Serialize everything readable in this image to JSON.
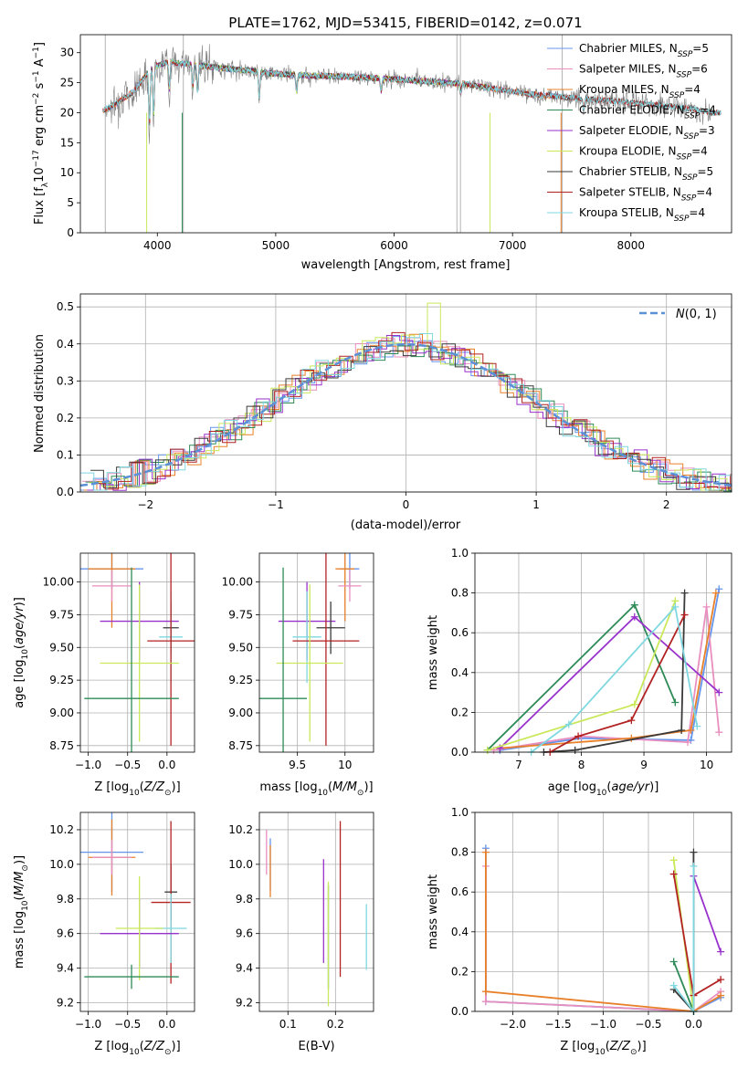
{
  "title": "PLATE=1762, MJD=53415, FIBERID=0142, z=0.071",
  "series_colors": {
    "Chabrier MILES": "#6495ed",
    "Salpeter MILES": "#e88fbf",
    "Kroupa MILES": "#e8802a",
    "Chabrier ELODIE": "#2e8b57",
    "Salpeter ELODIE": "#9932cc",
    "Kroupa ELODIE": "#c9e85a",
    "Chabrier STELIB": "#3a3a3a",
    "Salpeter STELIB": "#b22222",
    "Kroupa STELIB": "#7fd8e0"
  },
  "chart_data": [
    {
      "id": "spectrum",
      "type": "line",
      "xlabel": "wavelength [Angstrom, rest frame]",
      "ylabel": "Flux [f_λ10^-17 erg cm^-2 s^-1 A^-1]",
      "xlim": [
        3350,
        8850
      ],
      "ylim": [
        0,
        33
      ],
      "xticks": [
        4000,
        5000,
        6000,
        7000,
        8000
      ],
      "yticks": [
        0,
        5,
        10,
        15,
        20,
        25,
        30
      ],
      "data_color": "#808080",
      "data_continuum": {
        "x": [
          3550,
          3650,
          3800,
          3950,
          4100,
          4300,
          4500,
          4800,
          5000,
          5300,
          5600,
          6000,
          6300,
          6600,
          6900,
          7200,
          7500,
          7800,
          8100,
          8400,
          8700
        ],
        "y": [
          20.5,
          21.5,
          23.5,
          27.5,
          28.5,
          28.0,
          27.5,
          27.0,
          26.5,
          26.2,
          26.0,
          25.6,
          25.2,
          24.8,
          23.8,
          23.0,
          22.5,
          22.0,
          21.5,
          21.0,
          20.0
        ]
      },
      "legend": [
        {
          "name": "Chabrier MILES, N_SSP=5",
          "color": "#6495ed"
        },
        {
          "name": "Salpeter MILES, N_SSP=6",
          "color": "#e88fbf"
        },
        {
          "name": "Kroupa MILES, N_SSP=4",
          "color": "#e8802a"
        },
        {
          "name": "Chabrier ELODIE, N_SSP=4",
          "color": "#2e8b57"
        },
        {
          "name": "Salpeter ELODIE, N_SSP=3",
          "color": "#9932cc"
        },
        {
          "name": "Kroupa ELODIE, N_SSP=4",
          "color": "#c9e85a"
        },
        {
          "name": "Chabrier STELIB, N_SSP=5",
          "color": "#3a3a3a"
        },
        {
          "name": "Salpeter STELIB, N_SSP=4",
          "color": "#b22222"
        },
        {
          "name": "Kroupa STELIB, N_SSP=4",
          "color": "#7fd8e0"
        }
      ],
      "legend_placement": "right"
    },
    {
      "id": "residuals",
      "type": "histogram",
      "xlabel": "(data-model)/error",
      "ylabel": "Normed distribution",
      "xlim": [
        -2.5,
        2.5
      ],
      "ylim": [
        0,
        0.535
      ],
      "xticks": [
        -2,
        -1,
        0,
        1,
        2
      ],
      "yticks": [
        0.0,
        0.1,
        0.2,
        0.3,
        0.4,
        0.5
      ],
      "grid": true,
      "gaussian": {
        "name": "N(0,1)",
        "mu": 0,
        "sigma": 1,
        "color": "#5b8fd6"
      },
      "bin_width": 0.1,
      "legend_placement": "top-right"
    },
    {
      "id": "age-vs-Z",
      "type": "errorbar",
      "xlabel": "Z [log10(Z/Z_sun)]",
      "ylabel": "age  [log10(age/yr)]",
      "xlim": [
        -1.1,
        0.35
      ],
      "ylim": [
        8.7,
        10.22
      ],
      "xticks": [
        -1.0,
        -0.5,
        0.0
      ],
      "xtick_labels": [
        "−1.0",
        "−0.5",
        "0.0"
      ],
      "yticks": [
        8.75,
        9.0,
        9.25,
        9.5,
        9.75,
        10.0
      ],
      "grid": true
    },
    {
      "id": "age-vs-mass",
      "type": "errorbar",
      "xlabel": "mass [log10(M/M_sun)]",
      "ylabel": "",
      "xlim": [
        9.1,
        10.3
      ],
      "ylim": [
        8.7,
        10.22
      ],
      "xticks": [
        9.5,
        10.0
      ],
      "yticks": [
        8.75,
        9.0,
        9.25,
        9.5,
        9.75,
        10.0
      ],
      "grid": true
    },
    {
      "id": "weight-vs-age",
      "type": "line",
      "xlabel": "age  [log10(age/yr)]",
      "ylabel": "mass weight",
      "xlim": [
        6.3,
        10.4
      ],
      "ylim": [
        0,
        1.0
      ],
      "xticks": [
        7,
        8,
        9,
        10
      ],
      "yticks": [
        0.0,
        0.2,
        0.4,
        0.6,
        0.8,
        1.0
      ],
      "grid": true,
      "series": [
        {
          "name": "Chabrier MILES",
          "x": [
            6.7,
            8.0,
            9.75,
            10.2
          ],
          "y": [
            0.01,
            0.07,
            0.06,
            0.82
          ]
        },
        {
          "name": "Salpeter MILES",
          "x": [
            6.6,
            8.0,
            9.7,
            10.0,
            10.2
          ],
          "y": [
            0.01,
            0.08,
            0.05,
            0.73,
            0.1
          ]
        },
        {
          "name": "Kroupa MILES",
          "x": [
            6.7,
            8.8,
            9.75,
            10.15
          ],
          "y": [
            0.02,
            0.07,
            0.11,
            0.8
          ]
        },
        {
          "name": "Chabrier ELODIE",
          "x": [
            6.5,
            8.85,
            9.5
          ],
          "y": [
            0.01,
            0.74,
            0.25
          ]
        },
        {
          "name": "Salpeter ELODIE",
          "x": [
            6.7,
            8.85,
            10.2
          ],
          "y": [
            0.02,
            0.68,
            0.3
          ]
        },
        {
          "name": "Kroupa ELODIE",
          "x": [
            6.5,
            8.85,
            9.5
          ],
          "y": [
            0.01,
            0.24,
            0.76
          ]
        },
        {
          "name": "Chabrier STELIB",
          "x": [
            7.4,
            7.9,
            9.6,
            9.65
          ],
          "y": [
            0.0,
            0.01,
            0.11,
            0.8
          ]
        },
        {
          "name": "Salpeter STELIB",
          "x": [
            7.5,
            7.95,
            8.8,
            9.65
          ],
          "y": [
            0.0,
            0.08,
            0.16,
            0.69
          ]
        },
        {
          "name": "Kroupa STELIB",
          "x": [
            7.2,
            7.8,
            9.5,
            9.85
          ],
          "y": [
            0.0,
            0.14,
            0.73,
            0.13
          ]
        }
      ]
    },
    {
      "id": "mass-vs-Z",
      "type": "errorbar",
      "xlabel": "Z [log10(Z/Z_sun)]",
      "ylabel": "mass [log10(M/M_sun)]",
      "xlim": [
        -1.1,
        0.35
      ],
      "ylim": [
        9.15,
        10.3
      ],
      "xticks": [
        -1.0,
        -0.5,
        0.0
      ],
      "xtick_labels": [
        "−1.0",
        "−0.5",
        "0.0"
      ],
      "yticks": [
        9.2,
        9.4,
        9.6,
        9.8,
        10.0,
        10.2
      ],
      "grid": true
    },
    {
      "id": "mass-vs-EBV",
      "type": "errorbar",
      "xlabel": "E(B-V)",
      "ylabel": "",
      "xlim": [
        0.04,
        0.28
      ],
      "ylim": [
        9.15,
        10.3
      ],
      "xticks": [
        0.1,
        0.2
      ],
      "yticks": [
        9.2,
        9.4,
        9.6,
        9.8,
        10.0,
        10.2
      ],
      "grid": true
    },
    {
      "id": "weight-vs-Z",
      "type": "line",
      "xlabel": "Z [log10(Z/Z_sun)]",
      "ylabel": "mass weight",
      "xlim": [
        -2.42,
        0.42
      ],
      "ylim": [
        0,
        1.0
      ],
      "xticks": [
        -2.0,
        -1.5,
        -1.0,
        -0.5,
        0.0
      ],
      "xtick_labels": [
        "−2.0",
        "−1.5",
        "−1.0",
        "−0.5",
        "0.0"
      ],
      "yticks": [
        0.0,
        0.2,
        0.4,
        0.6,
        0.8,
        1.0
      ],
      "grid": true,
      "series": [
        {
          "name": "Chabrier MILES",
          "x": [
            -2.3,
            -2.3,
            0.0,
            0.3
          ],
          "y": [
            0.82,
            0.05,
            0.0,
            0.07
          ]
        },
        {
          "name": "Salpeter MILES",
          "x": [
            -2.3,
            -2.3,
            0.0,
            0.3
          ],
          "y": [
            0.73,
            0.05,
            0.0,
            0.1
          ]
        },
        {
          "name": "Kroupa MILES",
          "x": [
            -2.3,
            -2.3,
            0.0,
            0.3
          ],
          "y": [
            0.8,
            0.1,
            0.0,
            0.08
          ]
        },
        {
          "name": "Chabrier ELODIE",
          "x": [
            -0.22,
            0.0
          ],
          "y": [
            0.25,
            0.0
          ]
        },
        {
          "name": "Salpeter ELODIE",
          "x": [
            0.0,
            0.3
          ],
          "y": [
            0.68,
            0.3
          ]
        },
        {
          "name": "Kroupa ELODIE",
          "x": [
            -0.22,
            0.0
          ],
          "y": [
            0.76,
            0.0
          ]
        },
        {
          "name": "Chabrier STELIB",
          "x": [
            -0.22,
            0.0,
            0.0
          ],
          "y": [
            0.11,
            0.0,
            0.8
          ]
        },
        {
          "name": "Salpeter STELIB",
          "x": [
            -0.22,
            0.0,
            0.3
          ],
          "y": [
            0.69,
            0.08,
            0.16
          ]
        },
        {
          "name": "Kroupa STELIB",
          "x": [
            -0.22,
            0.0,
            0.0
          ],
          "y": [
            0.13,
            0.0,
            0.73
          ]
        }
      ]
    }
  ],
  "errorbars": {
    "age_vs_Z": [
      {
        "series": "Chabrier MILES",
        "x": -0.7,
        "y": 10.1,
        "xerr": [
          0.4,
          0.4
        ],
        "yerr": [
          0.15,
          0.15
        ]
      },
      {
        "series": "Kroupa MILES",
        "x": -0.7,
        "y": 10.1,
        "xerr": [
          0.3,
          0.3
        ],
        "yerr": [
          0.45,
          0.45
        ]
      },
      {
        "series": "Salpeter MILES",
        "x": -0.7,
        "y": 9.97,
        "xerr": [
          0.25,
          0.25
        ],
        "yerr": [
          0.12,
          0.12
        ]
      },
      {
        "series": "Salpeter ELODIE",
        "x": -0.35,
        "y": 9.7,
        "xerr": [
          0.5,
          0.5
        ],
        "yerr": [
          0.3,
          0.3
        ]
      },
      {
        "series": "Chabrier STELIB",
        "x": 0.05,
        "y": 9.65,
        "xerr": [
          0.1,
          0.1
        ],
        "yerr": [
          0.2,
          0.2
        ]
      },
      {
        "series": "Kroupa STELIB",
        "x": 0.05,
        "y": 9.58,
        "xerr": [
          0.15,
          0.15
        ],
        "yerr": [
          0.35,
          0.35
        ]
      },
      {
        "series": "Salpeter STELIB",
        "x": 0.05,
        "y": 9.55,
        "xerr": [
          0.3,
          0.3
        ],
        "yerr": [
          0.8,
          0.8
        ]
      },
      {
        "series": "Kroupa ELODIE",
        "x": -0.35,
        "y": 9.38,
        "xerr": [
          0.5,
          0.5
        ],
        "yerr": [
          0.6,
          0.6
        ]
      },
      {
        "series": "Chabrier ELODIE",
        "x": -0.45,
        "y": 9.11,
        "xerr": [
          0.6,
          0.6
        ],
        "yerr": [
          1.0,
          1.0
        ]
      }
    ],
    "age_vs_mass": [
      {
        "series": "Chabrier MILES",
        "x": 10.05,
        "y": 10.1,
        "xerr": [
          0.1,
          0.1
        ],
        "yerr": [
          0.15,
          0.15
        ]
      },
      {
        "series": "Kroupa MILES",
        "x": 10.0,
        "y": 10.1,
        "xerr": [
          0.1,
          0.1
        ],
        "yerr": [
          0.4,
          0.4
        ]
      },
      {
        "series": "Salpeter MILES",
        "x": 10.05,
        "y": 9.97,
        "xerr": [
          0.12,
          0.12
        ],
        "yerr": [
          0.12,
          0.12
        ]
      },
      {
        "series": "Salpeter ELODIE",
        "x": 9.6,
        "y": 9.7,
        "xerr": [
          0.3,
          0.3
        ],
        "yerr": [
          0.3,
          0.3
        ]
      },
      {
        "series": "Chabrier STELIB",
        "x": 9.85,
        "y": 9.65,
        "xerr": [
          0.15,
          0.15
        ],
        "yerr": [
          0.2,
          0.2
        ]
      },
      {
        "series": "Kroupa STELIB",
        "x": 9.6,
        "y": 9.58,
        "xerr": [
          0.15,
          0.15
        ],
        "yerr": [
          0.35,
          0.35
        ]
      },
      {
        "series": "Salpeter STELIB",
        "x": 9.8,
        "y": 9.55,
        "xerr": [
          0.35,
          0.35
        ],
        "yerr": [
          0.8,
          0.8
        ]
      },
      {
        "series": "Kroupa ELODIE",
        "x": 9.63,
        "y": 9.38,
        "xerr": [
          0.35,
          0.35
        ],
        "yerr": [
          0.6,
          0.6
        ]
      },
      {
        "series": "Chabrier ELODIE",
        "x": 9.35,
        "y": 9.11,
        "xerr": [
          0.25,
          0.25
        ],
        "yerr": [
          1.0,
          1.0
        ]
      }
    ],
    "mass_vs_Z": [
      {
        "series": "Chabrier MILES",
        "x": -0.7,
        "y": 10.07,
        "xerr": [
          0.4,
          0.4
        ],
        "yerr": [
          0.23,
          0.23
        ]
      },
      {
        "series": "Kroupa MILES",
        "x": -0.7,
        "y": 10.04,
        "xerr": [
          0.3,
          0.3
        ],
        "yerr": [
          0.22,
          0.22
        ]
      },
      {
        "series": "Salpeter MILES",
        "x": -0.7,
        "y": 10.04,
        "xerr": [
          0.25,
          0.25
        ],
        "yerr": [
          0.1,
          0.1
        ]
      },
      {
        "series": "Chabrier STELIB",
        "x": 0.05,
        "y": 9.84,
        "xerr": [
          0.08,
          0.08
        ],
        "yerr": [
          0.16,
          0.16
        ]
      },
      {
        "series": "Salpeter STELIB",
        "x": 0.05,
        "y": 9.78,
        "xerr": [
          0.25,
          0.25
        ],
        "yerr": [
          0.47,
          0.47
        ]
      },
      {
        "series": "Kroupa STELIB",
        "x": 0.05,
        "y": 9.63,
        "xerr": [
          0.2,
          0.2
        ],
        "yerr": [
          0.2,
          0.2
        ]
      },
      {
        "series": "Salpeter ELODIE",
        "x": -0.35,
        "y": 9.6,
        "xerr": [
          0.5,
          0.5
        ],
        "yerr": [
          0.2,
          0.2
        ]
      },
      {
        "series": "Kroupa ELODIE",
        "x": -0.35,
        "y": 9.63,
        "xerr": [
          0.3,
          0.3
        ],
        "yerr": [
          0.3,
          0.3
        ]
      },
      {
        "series": "Chabrier ELODIE",
        "x": -0.45,
        "y": 9.35,
        "xerr": [
          0.6,
          0.6
        ],
        "yerr": [
          0.07,
          0.07
        ]
      }
    ],
    "mass_vs_EBV": [
      {
        "series": "Salpeter MILES",
        "x": 0.055,
        "y": 10.07,
        "xerr": [
          0,
          0
        ],
        "yerr": [
          0.13,
          0.13
        ]
      },
      {
        "series": "Chabrier MILES",
        "x": 0.063,
        "y": 10.0,
        "xerr": [
          0,
          0
        ],
        "yerr": [
          0.15,
          0.15
        ]
      },
      {
        "series": "Kroupa MILES",
        "x": 0.063,
        "y": 9.96,
        "xerr": [
          0,
          0
        ],
        "yerr": [
          0.15,
          0.15
        ]
      },
      {
        "series": "Salpeter ELODIE",
        "x": 0.175,
        "y": 9.73,
        "xerr": [
          0,
          0
        ],
        "yerr": [
          0.3,
          0.3
        ]
      },
      {
        "series": "Chabrier ELODIE",
        "x": 0.185,
        "y": 9.58,
        "xerr": [
          0,
          0
        ],
        "yerr": [
          0.3,
          0.3
        ]
      },
      {
        "series": "Kroupa ELODIE",
        "x": 0.185,
        "y": 9.54,
        "xerr": [
          0,
          0
        ],
        "yerr": [
          0.36,
          0.36
        ]
      },
      {
        "series": "Salpeter STELIB",
        "x": 0.21,
        "y": 9.8,
        "xerr": [
          0,
          0
        ],
        "yerr": [
          0.45,
          0.45
        ]
      },
      {
        "series": "Kroupa STELIB",
        "x": 0.265,
        "y": 9.58,
        "xerr": [
          0,
          0
        ],
        "yerr": [
          0.19,
          0.19
        ]
      }
    ]
  }
}
